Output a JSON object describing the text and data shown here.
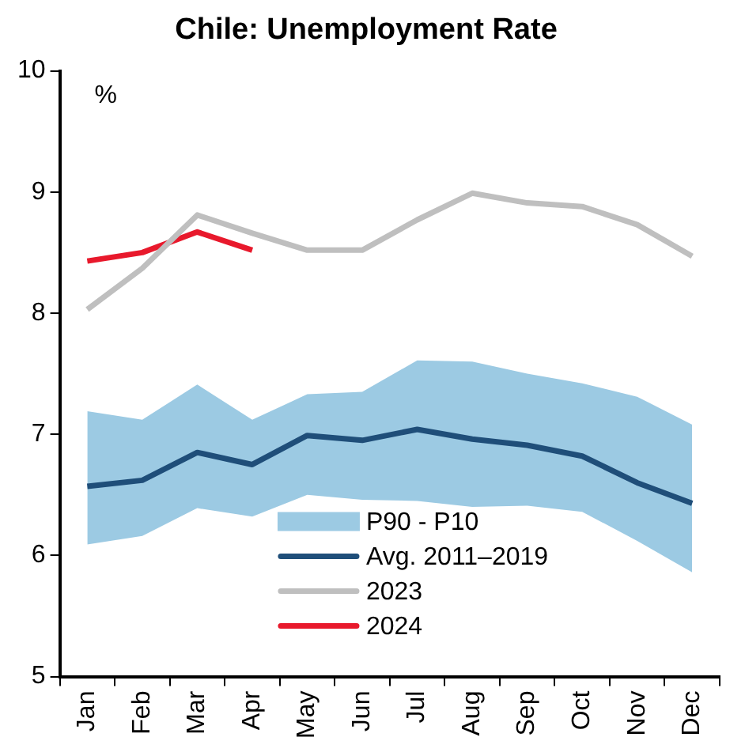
{
  "chart_data": {
    "type": "line",
    "title": "Chile: Unemployment Rate",
    "annotations": [
      "%"
    ],
    "categories": [
      "Jan",
      "Feb",
      "Mar",
      "Apr",
      "May",
      "Jun",
      "Jul",
      "Aug",
      "Sep",
      "Oct",
      "Nov",
      "Dec"
    ],
    "ylim": [
      5,
      10
    ],
    "yticks": [
      5,
      6,
      7,
      8,
      9,
      10
    ],
    "grid": false,
    "legend": "bottom",
    "marker": "none",
    "series": [
      {
        "name": "P90 - P10",
        "type": "area",
        "color": "#9ccae3",
        "values": [
          null,
          null,
          null,
          null,
          null,
          null,
          null,
          null,
          null,
          null,
          null,
          null
        ],
        "lower": [
          6.09,
          6.16,
          6.39,
          6.32,
          6.5,
          6.46,
          6.45,
          6.4,
          6.41,
          6.36,
          6.12,
          5.86
        ],
        "upper": [
          7.19,
          7.12,
          7.41,
          7.12,
          7.33,
          7.35,
          7.61,
          7.6,
          7.5,
          7.42,
          7.31,
          7.08
        ]
      },
      {
        "name": "Avg. 2011–2019",
        "color": "#1f4e79",
        "values": [
          6.57,
          6.62,
          6.85,
          6.75,
          6.99,
          6.95,
          7.04,
          6.96,
          6.91,
          6.82,
          6.6,
          6.43
        ]
      },
      {
        "name": "2023",
        "color": "#bfbfbf",
        "values": [
          8.03,
          8.37,
          8.81,
          8.66,
          8.52,
          8.52,
          8.77,
          8.99,
          8.91,
          8.88,
          8.73,
          8.47
        ]
      },
      {
        "name": "2024",
        "color": "#e8192c",
        "values": [
          8.43,
          8.5,
          8.67,
          8.52,
          null,
          null,
          null,
          null,
          null,
          null,
          null,
          null
        ]
      }
    ]
  }
}
